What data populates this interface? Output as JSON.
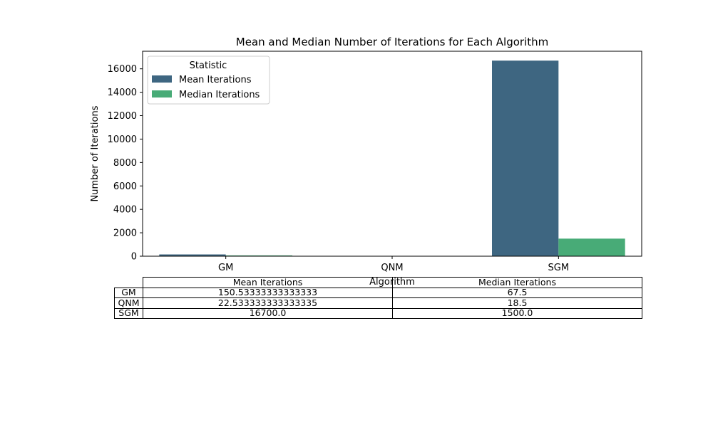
{
  "chart_data": {
    "type": "bar",
    "title": "Mean and Median Number of Iterations for Each Algorithm",
    "xlabel": "Algorithm",
    "ylabel": "Number of Iterations",
    "categories": [
      "GM",
      "QNM",
      "SGM"
    ],
    "series": [
      {
        "name": "Mean Iterations",
        "values": [
          150.53333333333333,
          22.533333333333335,
          16700.0
        ],
        "color": "#3e6681"
      },
      {
        "name": "Median Iterations",
        "values": [
          67.5,
          18.5,
          1500.0
        ],
        "color": "#48ab77"
      }
    ],
    "ylim": [
      0,
      17500
    ],
    "yticks": [
      "0",
      "2000",
      "4000",
      "6000",
      "8000",
      "10000",
      "12000",
      "14000",
      "16000"
    ],
    "legend": {
      "title": "Statistic",
      "placement": "top-left"
    },
    "grid": false
  },
  "table": {
    "headers": [
      "Mean Iterations",
      "Median Iterations"
    ],
    "rows": [
      {
        "label": "GM",
        "mean": "150.53333333333333",
        "median": "67.5"
      },
      {
        "label": "QNM",
        "mean": "22.533333333333335",
        "median": "18.5"
      },
      {
        "label": "SGM",
        "mean": "16700.0",
        "median": "1500.0"
      }
    ]
  }
}
